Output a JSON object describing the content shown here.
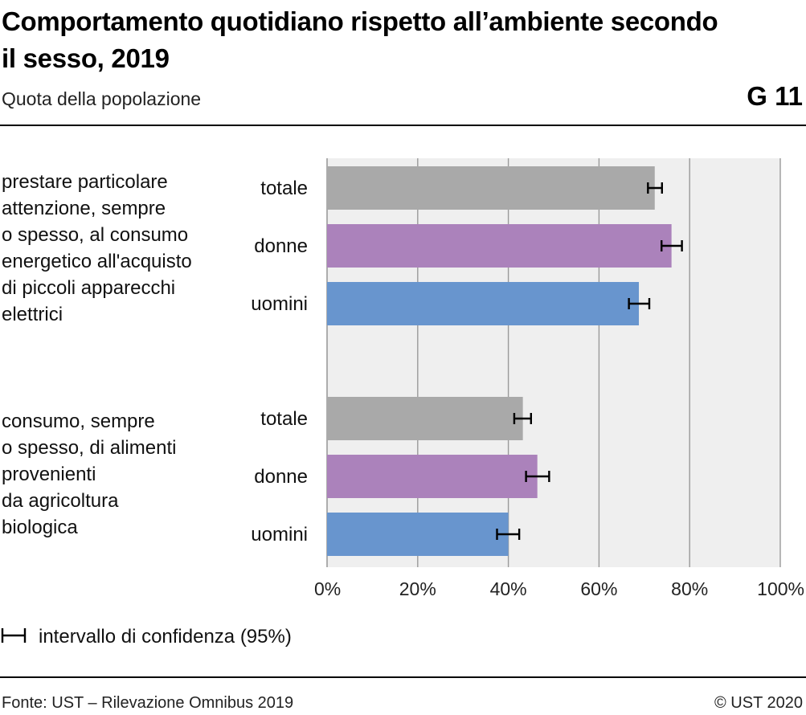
{
  "header": {
    "title": "Comportamento quotidiano rispetto all’ambiente secondo il sesso, 2019",
    "subtitle": "Quota della popolazione",
    "code": "G 11"
  },
  "footer": {
    "source": "Fonte: UST – Rilevazione Omnibus 2019",
    "copyright": "© UST 2020"
  },
  "legend": {
    "ci_label": "intervallo di confidenza (95%)"
  },
  "colors": {
    "totale": "#a9a9a9",
    "donne": "#ab82bb",
    "uomini": "#6895ce",
    "plot_background": "#efefef",
    "grid": "#9a9a9a"
  },
  "chart_data": {
    "type": "bar",
    "orientation": "horizontal",
    "xlim": [
      0,
      100
    ],
    "x_ticks": [
      "0%",
      "20%",
      "40%",
      "60%",
      "80%",
      "100%"
    ],
    "x_tick_values": [
      0,
      20,
      40,
      60,
      80,
      100
    ],
    "grid": true,
    "groups": [
      {
        "label": "prestare particolare attenzione, sempre o spesso, al consumo energetico all'acquisto di piccoli apparecchi elettrici",
        "label_lines": [
          "prestare particolare",
          "attenzione, sempre",
          "o spesso, al consumo",
          "energetico all'acquisto",
          "di piccoli apparecchi",
          "elettrici"
        ],
        "bars": [
          {
            "category": "totale",
            "value": 72.3,
            "ci_low": 70.8,
            "ci_high": 73.9
          },
          {
            "category": "donne",
            "value": 76.0,
            "ci_low": 73.8,
            "ci_high": 78.3
          },
          {
            "category": "uomini",
            "value": 68.8,
            "ci_low": 66.6,
            "ci_high": 71.1
          }
        ]
      },
      {
        "label": "consumo, sempre o spesso, di alimenti provenienti da agricoltura biologica",
        "label_lines": [
          "consumo, sempre",
          "o spesso, di alimenti",
          "provenienti",
          "da agricoltura",
          "biologica"
        ],
        "bars": [
          {
            "category": "totale",
            "value": 43.2,
            "ci_low": 41.3,
            "ci_high": 45.0
          },
          {
            "category": "donne",
            "value": 46.4,
            "ci_low": 43.9,
            "ci_high": 49.0
          },
          {
            "category": "uomini",
            "value": 40.0,
            "ci_low": 37.5,
            "ci_high": 42.4
          }
        ]
      }
    ]
  }
}
